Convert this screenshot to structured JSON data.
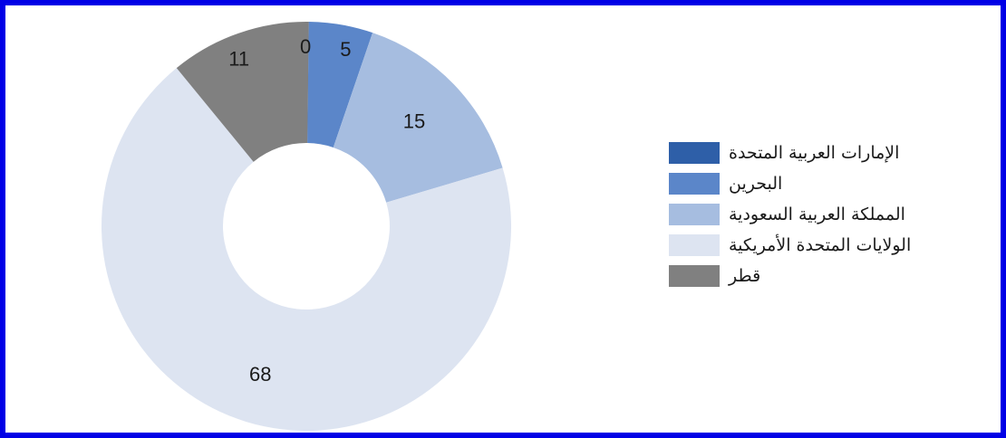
{
  "chart_data": {
    "type": "pie",
    "donut": true,
    "title": "",
    "start": "top",
    "direction": "clockwise",
    "legend_position": "right",
    "series": [
      {
        "name": "الإمارات العربية المتحدة",
        "value": 0,
        "label": "0",
        "color": "#2e5fa8"
      },
      {
        "name": "البحرين",
        "value": 5,
        "label": "5",
        "color": "#5b86c9"
      },
      {
        "name": "المملكة العربية السعودية",
        "value": 15,
        "label": "15",
        "color": "#a6bde0"
      },
      {
        "name": "الولايات المتحدة الأمريكية",
        "value": 68,
        "label": "68",
        "color": "#dde4f1"
      },
      {
        "name": "قطر",
        "value": 11,
        "label": "11",
        "color": "#808080"
      }
    ]
  },
  "colors": {
    "frame": "#0000e6"
  }
}
